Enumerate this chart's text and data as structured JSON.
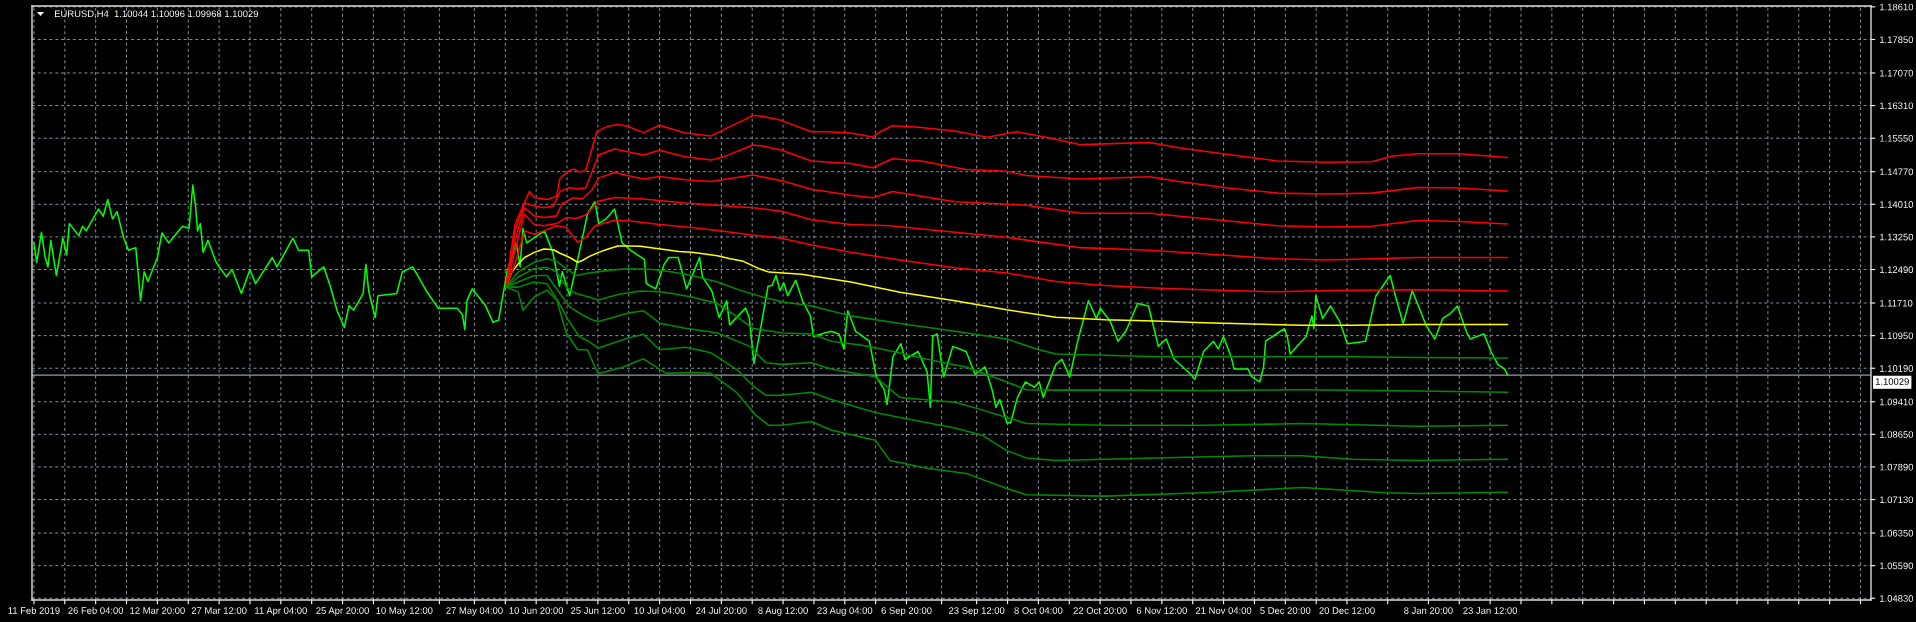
{
  "chart_data": {
    "type": "line",
    "title": "EURUSD,H4  1.10044 1.10096 1.09968 1.10029",
    "xlim": [
      "2019-02-11T01:00",
      "2020-04-23T00:00"
    ],
    "xticks": [
      {
        "value": "2019-02-11T12:00",
        "label": "11 Feb 2019"
      },
      {
        "value": "2019-02-18T20:00",
        "label": null
      },
      {
        "value": "2019-02-26T04:00",
        "label": "26 Feb 04:00"
      },
      {
        "value": "2019-03-05T12:00",
        "label": null
      },
      {
        "value": "2019-03-12T20:00",
        "label": "12 Mar 20:00"
      },
      {
        "value": "2019-03-20T04:00",
        "label": null
      },
      {
        "value": "2019-03-27T12:00",
        "label": "27 Mar 12:00"
      },
      {
        "value": "2019-04-03T20:00",
        "label": null
      },
      {
        "value": "2019-04-11T04:00",
        "label": "11 Apr 04:00"
      },
      {
        "value": "2019-04-18T12:00",
        "label": null
      },
      {
        "value": "2019-04-25T20:00",
        "label": "25 Apr 20:00"
      },
      {
        "value": "2019-05-03T04:00",
        "label": null
      },
      {
        "value": "2019-05-10T12:00",
        "label": "10 May 12:00"
      },
      {
        "value": "2019-05-18T20:00",
        "label": null
      },
      {
        "value": "2019-05-27T04:00",
        "label": "27 May 04:00"
      },
      {
        "value": "2019-06-03T12:00",
        "label": null
      },
      {
        "value": "2019-06-10T20:00",
        "label": "10 Jun 20:00"
      },
      {
        "value": "2019-06-18T04:00",
        "label": null
      },
      {
        "value": "2019-06-25T12:00",
        "label": "25 Jun 12:00"
      },
      {
        "value": "2019-07-02T20:00",
        "label": null
      },
      {
        "value": "2019-07-10T04:00",
        "label": "10 Jul 04:00"
      },
      {
        "value": "2019-07-17T12:00",
        "label": null
      },
      {
        "value": "2019-07-24T20:00",
        "label": "24 Jul 20:00"
      },
      {
        "value": "2019-08-01T04:00",
        "label": null
      },
      {
        "value": "2019-08-08T12:00",
        "label": "8 Aug 12:00"
      },
      {
        "value": "2019-08-15T20:00",
        "label": null
      },
      {
        "value": "2019-08-23T04:00",
        "label": "23 Aug 04:00"
      },
      {
        "value": "2019-08-30T12:00",
        "label": null
      },
      {
        "value": "2019-09-06T20:00",
        "label": "6 Sep 20:00"
      },
      {
        "value": "2019-09-15T04:00",
        "label": null
      },
      {
        "value": "2019-09-23T12:00",
        "label": "23 Sep 12:00"
      },
      {
        "value": "2019-09-30T20:00",
        "label": null
      },
      {
        "value": "2019-10-08T04:00",
        "label": "8 Oct 04:00"
      },
      {
        "value": "2019-10-15T12:00",
        "label": null
      },
      {
        "value": "2019-10-22T20:00",
        "label": "22 Oct 20:00"
      },
      {
        "value": "2019-10-30T04:00",
        "label": null
      },
      {
        "value": "2019-11-06T12:00",
        "label": "6 Nov 12:00"
      },
      {
        "value": "2019-11-13T20:00",
        "label": null
      },
      {
        "value": "2019-11-21T04:00",
        "label": "21 Nov 04:00"
      },
      {
        "value": "2019-11-28T12:00",
        "label": null
      },
      {
        "value": "2019-12-05T20:00",
        "label": "5 Dec 20:00"
      },
      {
        "value": "2019-12-13T04:00",
        "label": null
      },
      {
        "value": "2019-12-20T12:00",
        "label": "20 Dec 12:00"
      },
      {
        "value": "2019-12-30T04:00",
        "label": null
      },
      {
        "value": "2020-01-08T20:00",
        "label": "8 Jan 20:00"
      },
      {
        "value": "2020-01-16T04:00",
        "label": null
      },
      {
        "value": "2020-01-23T12:00",
        "label": "23 Jan 12:00"
      },
      {
        "value": "2020-01-30T20:00",
        "label": null
      },
      {
        "value": "2020-02-07T04:00",
        "label": null
      },
      {
        "value": "2020-02-14T12:00",
        "label": null
      },
      {
        "value": "2020-02-21T20:00",
        "label": null
      },
      {
        "value": "2020-02-29T04:00",
        "label": null
      },
      {
        "value": "2020-03-07T12:00",
        "label": null
      },
      {
        "value": "2020-03-14T20:00",
        "label": null
      },
      {
        "value": "2020-03-22T04:00",
        "label": null
      },
      {
        "value": "2020-03-29T12:00",
        "label": null
      },
      {
        "value": "2020-04-05T20:00",
        "label": null
      },
      {
        "value": "2020-04-13T04:00",
        "label": null
      },
      {
        "value": "2020-04-20T12:00",
        "label": null
      }
    ],
    "ylim": [
      1.0479,
      1.1863
    ],
    "yticks": [
      {
        "value": 1.0483,
        "label": "1.04830"
      },
      {
        "value": 1.0559,
        "label": "1.05590"
      },
      {
        "value": 1.0635,
        "label": "1.06350"
      },
      {
        "value": 1.0713,
        "label": "1.07130"
      },
      {
        "value": 1.0789,
        "label": "1.07890"
      },
      {
        "value": 1.0865,
        "label": "1.08650"
      },
      {
        "value": 1.0941,
        "label": "1.09410"
      },
      {
        "value": 1.1019,
        "label": "1.10190"
      },
      {
        "value": 1.1095,
        "label": "1.10950"
      },
      {
        "value": 1.1171,
        "label": "1.11710"
      },
      {
        "value": 1.1249,
        "label": "1.12490"
      },
      {
        "value": 1.1325,
        "label": "1.13250"
      },
      {
        "value": 1.1401,
        "label": "1.14010"
      },
      {
        "value": 1.1477,
        "label": "1.14770"
      },
      {
        "value": 1.1555,
        "label": "1.15550"
      },
      {
        "value": 1.1631,
        "label": "1.16310"
      },
      {
        "value": 1.1707,
        "label": "1.17070"
      },
      {
        "value": 1.1785,
        "label": "1.17850"
      },
      {
        "value": 1.1861,
        "label": "1.18610"
      }
    ],
    "grid": true,
    "ref_lines": [
      {
        "axis": "y",
        "value": 1.10029,
        "label": "1.10029",
        "color": "#8e9cab"
      }
    ],
    "series": [
      {
        "color": "#00ff00",
        "x": [
          "2019-02-11T12:00",
          "2019-02-12T04:00",
          "2019-02-13T07:00",
          "2019-02-14T04:00",
          "2019-02-14T20:00",
          "2019-02-15T12:00",
          "2019-02-16T20:00",
          "2019-02-18T09:00",
          "2019-02-19T07:00",
          "2019-02-19T22:00",
          "2019-02-22T04:00",
          "2019-02-23T01:00",
          "2019-02-23T22:00",
          "2019-02-26T20:00",
          "2019-02-27T23:00",
          "2019-03-01T01:00",
          "2019-03-02T04:00",
          "2019-03-03T06:00",
          "2019-03-04T20:00",
          "2019-03-05T23:00",
          "2019-03-07T17:00",
          "2019-03-08T20:00",
          "2019-03-09T17:00",
          "2019-03-10T14:00",
          "2019-03-12T20:00",
          "2019-03-13T22:00",
          "2019-03-15T12:00",
          "2019-03-18T20:00",
          "2019-03-20T09:00",
          "2019-03-21T06:00",
          "2019-03-21T22:00",
          "2019-03-22T09:00",
          "2019-03-23T01:00",
          "2019-03-23T17:00",
          "2019-03-24T20:00",
          "2019-03-26T19:00",
          "2019-03-29T06:00",
          "2019-03-30T14:00",
          "2019-04-01T19:00",
          "2019-04-03T20:00",
          "2019-04-05T04:00",
          "2019-04-09T03:00",
          "2019-04-10T06:00",
          "2019-04-14T01:00",
          "2019-04-15T09:00",
          "2019-04-17T19:00",
          "2019-04-18T12:00",
          "2019-04-21T09:00",
          "2019-04-22T22:00",
          "2019-04-24T12:00",
          "2019-04-26T06:00",
          "2019-04-27T09:00",
          "2019-04-28T11:00",
          "2019-04-30T17:00",
          "2019-05-01T09:00",
          "2019-05-02T01:00",
          "2019-05-03T14:00",
          "2019-05-04T06:00",
          "2019-05-08T17:00",
          "2019-05-10T01:00",
          "2019-05-12T12:00",
          "2019-05-15T18:00",
          "2019-05-18T13:00",
          "2019-05-23T02:00",
          "2019-05-24T08:00",
          "2019-05-24T21:00",
          "2019-05-25T09:00",
          "2019-05-26T15:00",
          "2019-05-29T19:00",
          "2019-05-31T14:00",
          "2019-06-01T22:00",
          "2019-06-03T22:00",
          "2019-06-06T03:00",
          "2019-06-07T00:00",
          "2019-06-07T17:00",
          "2019-06-08T14:00",
          "2019-06-12T19:00",
          "2019-06-14T19:00",
          "2019-06-16T09:00",
          "2019-06-17T01:00",
          "2019-06-18T19:00",
          "2019-06-20T08:00",
          "2019-06-23T01:00",
          "2019-06-24T19:00",
          "2019-06-25T17:00",
          "2019-06-27T11:00",
          "2019-06-29T11:00",
          "2019-07-01T06:00",
          "2019-07-03T06:00",
          "2019-07-06T14:00",
          "2019-07-07T00:00",
          "2019-07-09T06:00",
          "2019-07-11T06:00",
          "2019-07-12T08:00",
          "2019-07-14T14:00",
          "2019-07-16T14:00",
          "2019-07-19T16:00",
          "2019-07-20T08:00",
          "2019-07-22T14:00",
          "2019-07-24T08:00",
          "2019-07-26T03:00",
          "2019-07-26T19:00",
          "2019-07-30T14:00",
          "2019-07-31T11:00",
          "2019-08-01T14:00",
          "2019-08-03T03:00",
          "2019-08-04T22:00",
          "2019-08-05T21:00",
          "2019-08-06T20:00",
          "2019-08-07T18:00",
          "2019-08-08T16:00",
          "2019-08-09T15:00",
          "2019-08-11T12:00",
          "2019-08-13T03:00",
          "2019-08-15T00:00",
          "2019-08-15T17:00",
          "2019-08-17T14:00",
          "2019-08-19T22:00",
          "2019-08-21T19:00",
          "2019-08-22T23:00",
          "2019-08-23T21:00",
          "2019-08-25T18:00",
          "2019-08-29T00:00",
          "2019-08-30T16:00",
          "2019-09-01T13:00",
          "2019-09-02T05:00",
          "2019-09-03T15:00",
          "2019-09-05T12:00",
          "2019-09-06T11:00",
          "2019-09-09T14:00",
          "2019-09-11T17:00",
          "2019-09-12T12:00",
          "2019-09-13T01:00",
          "2019-09-14T02:00",
          "2019-09-15T16:00",
          "2019-09-17T20:00",
          "2019-09-21T00:00",
          "2019-09-23T03:00",
          "2019-09-25T12:00",
          "2019-09-27T04:00",
          "2019-09-28T02:00",
          "2019-09-29T00:00",
          "2019-09-30T16:00",
          "2019-10-01T14:00",
          "2019-10-03T05:00",
          "2019-10-05T02:00",
          "2019-10-07T05:00",
          "2019-10-08T09:00",
          "2019-10-09T07:00",
          "2019-10-12T08:00",
          "2019-10-13T18:00",
          "2019-10-15T15:00",
          "2019-10-17T12:00",
          "2019-10-20T01:00",
          "2019-10-21T23:00",
          "2019-10-22T21:00",
          "2019-10-25T05:00",
          "2019-10-27T02:00",
          "2019-10-28T23:00",
          "2019-10-31T18:00",
          "2019-11-03T08:00",
          "2019-11-05T16:00",
          "2019-11-07T13:00",
          "2019-11-09T10:00",
          "2019-11-13T09:00",
          "2019-11-14T08:00",
          "2019-11-16T10:00",
          "2019-11-18T18:00",
          "2019-11-19T22:00",
          "2019-11-21T03:00",
          "2019-11-22T23:00",
          "2019-11-23T16:00",
          "2019-11-26T23:00",
          "2019-11-27T21:00",
          "2019-11-29T18:00",
          "2019-11-30T16:00",
          "2019-12-01T04:00",
          "2019-12-05T14:00",
          "2019-12-06T07:00",
          "2019-12-07T00:00",
          "2019-12-10T18:00",
          "2019-12-12T04:00",
          "2019-12-12T15:00",
          "2019-12-13T02:00",
          "2019-12-14T17:00",
          "2019-12-16T14:00",
          "2019-12-18T17:00",
          "2019-12-20T14:00",
          "2019-12-24T22:00",
          "2019-12-27T09:00",
          "2019-12-30T18:00",
          "2020-01-01T00:00",
          "2020-01-02T20:00",
          "2020-01-05T00:00",
          "2020-01-08T09:00",
          "2020-01-10T09:00",
          "2020-01-12T06:00",
          "2020-01-14T03:00",
          "2020-01-15T18:00",
          "2020-01-17T20:00",
          "2020-01-18T19:00",
          "2020-01-22T01:00",
          "2020-01-23T17:00",
          "2020-01-25T08:00",
          "2020-01-26T23:00",
          "2020-01-27T16:00"
        ],
        "values": [
          1.1311,
          1.1266,
          1.1336,
          1.1277,
          1.1255,
          1.1317,
          1.1235,
          1.1322,
          1.1283,
          1.1356,
          1.1328,
          1.135,
          1.1339,
          1.139,
          1.1373,
          1.1412,
          1.1367,
          1.1384,
          1.1322,
          1.1294,
          1.13,
          1.1176,
          1.1244,
          1.1221,
          1.1277,
          1.1334,
          1.1311,
          1.135,
          1.1345,
          1.1446,
          1.1395,
          1.1339,
          1.1356,
          1.1289,
          1.1317,
          1.1266,
          1.1232,
          1.1249,
          1.1193,
          1.1249,
          1.1216,
          1.1277,
          1.1255,
          1.1322,
          1.1294,
          1.1294,
          1.1232,
          1.1255,
          1.121,
          1.1154,
          1.1114,
          1.1165,
          1.1154,
          1.1193,
          1.1261,
          1.1199,
          1.1137,
          1.1188,
          1.1193,
          1.1244,
          1.1255,
          1.1199,
          1.1159,
          1.1159,
          1.1143,
          1.1109,
          1.1176,
          1.1204,
          1.1165,
          1.1126,
          1.1131,
          1.1244,
          1.1311,
          1.1255,
          1.1345,
          1.1311,
          1.1339,
          1.1289,
          1.121,
          1.1244,
          1.1188,
          1.1255,
          1.1379,
          1.1407,
          1.1356,
          1.1367,
          1.139,
          1.1311,
          1.1294,
          1.1272,
          1.1216,
          1.1204,
          1.1261,
          1.1277,
          1.1277,
          1.1204,
          1.1277,
          1.1232,
          1.1199,
          1.1137,
          1.1176,
          1.112,
          1.1159,
          1.1137,
          1.103,
          1.1109,
          1.121,
          1.1212,
          1.1235,
          1.12,
          1.1218,
          1.1188,
          1.1224,
          1.1176,
          1.1141,
          1.1093,
          1.1099,
          1.1105,
          1.1099,
          1.1064,
          1.1153,
          1.1105,
          1.1082,
          1.0999,
          1.0969,
          1.0934,
          1.1046,
          1.1076,
          1.104,
          1.1058,
          1.1011,
          1.0928,
          1.1093,
          1.1099,
          1.0999,
          1.107,
          1.1058,
          1.1005,
          1.1022,
          1.0969,
          1.0928,
          1.0946,
          1.0892,
          1.0892,
          1.0951,
          1.0987,
          1.0975,
          1.0987,
          1.0951,
          1.1028,
          1.104,
          1.0999,
          1.1082,
          1.1176,
          1.1135,
          1.1158,
          1.1129,
          1.1082,
          1.1105,
          1.117,
          1.1164,
          1.107,
          1.1087,
          1.104,
          1.1005,
          1.0993,
          1.1058,
          1.1082,
          1.1064,
          1.1093,
          1.1046,
          1.1017,
          1.1017,
          1.0999,
          1.0987,
          1.1022,
          1.1082,
          1.1111,
          1.1093,
          1.1052,
          1.1093,
          1.1141,
          1.1111,
          1.1188,
          1.1135,
          1.1164,
          1.1129,
          1.1076,
          1.1082,
          1.1188,
          1.1235,
          1.1188,
          1.1123,
          1.12,
          1.1117,
          1.1087,
          1.1135,
          1.1147,
          1.1164,
          1.1105,
          1.1087,
          1.1099,
          1.1058,
          1.1028,
          1.1017,
          1.1003
        ]
      },
      {
        "color": "#ffff00",
        "x": [
          "2019-06-03T16:00",
          "2019-06-05T01:00",
          "2019-06-06T13:00",
          "2019-06-08T02:00",
          "2019-06-10T09:00",
          "2019-06-12T16:00",
          "2019-06-14T23:00",
          "2019-06-16T12:00",
          "2019-06-18T19:00",
          "2019-06-20T17:00",
          "2019-06-21T20:00",
          "2019-06-23T09:00",
          "2019-06-25T16:00",
          "2019-06-27T23:00",
          "2019-06-30T06:00",
          "2019-07-02T13:00",
          "2019-07-05T14:00",
          "2019-07-08T15:00",
          "2019-07-11T17:00",
          "2019-07-14T18:00",
          "2019-07-17T19:00",
          "2019-07-20T21:00",
          "2019-07-23T22:00",
          "2019-07-26T23:00",
          "2019-07-30T01:00",
          "2019-08-02T20:00",
          "2019-08-05T03:00",
          "2019-08-12T21:00",
          "2019-08-24T14:00",
          "2019-09-05T07:00",
          "2019-09-18T08:00",
          "2019-09-30T16:00",
          "2019-10-12T08:00",
          "2019-10-24T01:00",
          "2019-11-04T18:00",
          "2019-11-16T10:00",
          "2019-11-28T03:00",
          "2019-12-09T19:00",
          "2019-12-21T20:00",
          "2020-01-06T06:00",
          "2020-01-27T16:00"
        ],
        "values": [
          1.1208,
          1.1243,
          1.1262,
          1.1277,
          1.1289,
          1.1297,
          1.1295,
          1.1287,
          1.1277,
          1.1266,
          1.127,
          1.1279,
          1.1289,
          1.1297,
          1.1304,
          1.1304,
          1.1303,
          1.1299,
          1.1295,
          1.1291,
          1.1289,
          1.1285,
          1.1281,
          1.1274,
          1.1268,
          1.1251,
          1.1243,
          1.1238,
          1.122,
          1.1196,
          1.1176,
          1.1155,
          1.1138,
          1.1132,
          1.1129,
          1.1125,
          1.1122,
          1.1119,
          1.1119,
          1.1121,
          1.1121
        ]
      },
      {
        "color": "#ff0000",
        "x": [
          "2019-06-03T16:00",
          "2019-06-05T19:00",
          "2019-06-08T02:00",
          "2019-06-10T09:00",
          "2019-06-12T16:00",
          "2019-06-15T17:00",
          "2019-06-18T00:00",
          "2019-06-20T17:00",
          "2019-06-22T14:00",
          "2019-06-24T21:00",
          "2019-06-29T11:00",
          "2019-07-03T07:00",
          "2019-07-10T04:00",
          "2019-07-17T19:00",
          "2019-07-23T22:00",
          "2019-07-31T13:00",
          "2019-08-08T05:00",
          "2019-08-15T06:00",
          "2019-08-24T14:00",
          "2019-09-05T07:00",
          "2019-09-18T08:00",
          "2019-09-30T16:00",
          "2019-10-12T08:00",
          "2019-10-24T01:00",
          "2019-11-04T18:00",
          "2019-11-16T10:00",
          "2019-12-03T23:00",
          "2019-12-15T16:00",
          "2020-01-06T06:00",
          "2020-01-27T16:00"
        ],
        "values": [
          1.1208,
          1.1262,
          1.1339,
          1.1331,
          1.1339,
          1.1351,
          1.1347,
          1.1312,
          1.1324,
          1.1351,
          1.1364,
          1.1362,
          1.1354,
          1.1347,
          1.134,
          1.133,
          1.1322,
          1.1306,
          1.1289,
          1.1271,
          1.1253,
          1.1241,
          1.1221,
          1.1212,
          1.1206,
          1.1202,
          1.1197,
          1.12,
          1.1202,
          1.1199
        ]
      },
      {
        "color": "#ff0000",
        "x": [
          "2019-06-03T16:00",
          "2019-06-05T19:00",
          "2019-06-08T02:00",
          "2019-06-10T09:00",
          "2019-06-12T16:00",
          "2019-06-15T17:00",
          "2019-06-18T00:00",
          "2019-06-20T07:00",
          "2019-06-22T14:00",
          "2019-06-25T16:00",
          "2019-06-29T11:00",
          "2019-07-05T14:00",
          "2019-07-16T07:00",
          "2019-07-23T22:00",
          "2019-08-01T08:00",
          "2019-08-08T05:00",
          "2019-08-15T06:00",
          "2019-08-24T14:00",
          "2019-09-02T22:00",
          "2019-09-18T08:00",
          "2019-09-30T16:00",
          "2019-10-18T05:00",
          "2019-11-03T14:00",
          "2019-11-16T10:00",
          "2019-12-03T23:00",
          "2019-12-15T16:00",
          "2020-01-06T06:00",
          "2020-01-27T16:00"
        ],
        "values": [
          1.1208,
          1.1293,
          1.1378,
          1.1354,
          1.1351,
          1.1356,
          1.137,
          1.1368,
          1.1376,
          1.1408,
          1.1417,
          1.1414,
          1.1404,
          1.1399,
          1.1393,
          1.1385,
          1.1365,
          1.1354,
          1.1351,
          1.1336,
          1.1324,
          1.13,
          1.1294,
          1.1286,
          1.1274,
          1.1271,
          1.1277,
          1.1277
        ]
      },
      {
        "color": "#ff0000",
        "x": [
          "2019-06-03T16:00",
          "2019-06-05T19:00",
          "2019-06-08T02:00",
          "2019-06-10T09:00",
          "2019-06-12T16:00",
          "2019-06-15T17:00",
          "2019-06-16T21:00",
          "2019-06-19T13:00",
          "2019-06-21T20:00",
          "2019-06-24T03:00",
          "2019-06-25T16:00",
          "2019-06-29T11:00",
          "2019-07-06T08:00",
          "2019-07-10T04:00",
          "2019-07-16T07:00",
          "2019-07-22T09:00",
          "2019-08-01T08:00",
          "2019-08-08T05:00",
          "2019-08-15T06:00",
          "2019-08-24T14:00",
          "2019-08-29T20:00",
          "2019-09-03T12:00",
          "2019-09-18T08:00",
          "2019-10-05T08:00",
          "2019-10-18T05:00",
          "2019-11-03T14:00",
          "2019-11-16T10:00",
          "2019-12-03T23:00",
          "2019-12-15T16:00",
          "2019-12-26T10:00",
          "2020-01-06T06:00",
          "2020-01-16T05:00",
          "2020-01-27T16:00"
        ],
        "values": [
          1.1208,
          1.1316,
          1.1393,
          1.1374,
          1.137,
          1.1374,
          1.1401,
          1.1416,
          1.1414,
          1.1435,
          1.1462,
          1.1475,
          1.146,
          1.1466,
          1.1458,
          1.1454,
          1.1469,
          1.1456,
          1.1436,
          1.1422,
          1.1416,
          1.1431,
          1.1407,
          1.1399,
          1.138,
          1.138,
          1.1368,
          1.1351,
          1.1348,
          1.135,
          1.1363,
          1.1361,
          1.1355
        ]
      },
      {
        "color": "#ff0000",
        "x": [
          "2019-06-03T16:00",
          "2019-06-05T19:00",
          "2019-06-08T02:00",
          "2019-06-10T09:00",
          "2019-06-12T16:00",
          "2019-06-14T23:00",
          "2019-06-16T12:00",
          "2019-06-18T19:00",
          "2019-06-20T07:00",
          "2019-06-22T14:00",
          "2019-06-24T03:00",
          "2019-06-25T16:00",
          "2019-06-29T11:00",
          "2019-07-06T08:00",
          "2019-07-10T04:00",
          "2019-07-16T07:00",
          "2019-07-22T09:00",
          "2019-07-25T11:00",
          "2019-08-01T08:00",
          "2019-08-03T15:00",
          "2019-08-08T05:00",
          "2019-08-15T06:00",
          "2019-08-24T14:00",
          "2019-08-29T20:00",
          "2019-09-03T12:00",
          "2019-09-10T09:00",
          "2019-09-21T00:00",
          "2019-09-30T16:00",
          "2019-10-05T08:00",
          "2019-10-18T05:00",
          "2019-11-03T14:00",
          "2019-11-10T14:00",
          "2019-11-22T06:00",
          "2019-12-03T23:00",
          "2019-12-15T16:00",
          "2019-12-26T10:00",
          "2020-01-06T06:00",
          "2020-01-16T05:00",
          "2020-01-27T16:00"
        ],
        "values": [
          1.1208,
          1.1339,
          1.1404,
          1.1397,
          1.1393,
          1.1397,
          1.1431,
          1.144,
          1.1437,
          1.1439,
          1.1477,
          1.1516,
          1.153,
          1.1516,
          1.1527,
          1.1512,
          1.1504,
          1.1512,
          1.1539,
          1.1537,
          1.1527,
          1.1502,
          1.1496,
          1.1486,
          1.1507,
          1.1502,
          1.1482,
          1.1478,
          1.1468,
          1.146,
          1.1465,
          1.1454,
          1.1439,
          1.1427,
          1.1425,
          1.1427,
          1.144,
          1.1439,
          1.1432
        ]
      },
      {
        "color": "#ff0000",
        "x": [
          "2019-06-03T16:00",
          "2019-06-05T19:00",
          "2019-06-09T06:00",
          "2019-06-10T09:00",
          "2019-06-13T10:00",
          "2019-06-15T17:00",
          "2019-06-16T12:00",
          "2019-06-18T19:00",
          "2019-06-19T22:00",
          "2019-06-21T02:00",
          "2019-06-22T14:00",
          "2019-06-24T03:00",
          "2019-06-25T06:00",
          "2019-06-27T23:00",
          "2019-06-30T06:00",
          "2019-07-02T13:00",
          "2019-07-06T08:00",
          "2019-07-10T04:00",
          "2019-07-13T05:00",
          "2019-07-16T07:00",
          "2019-07-22T09:00",
          "2019-07-23T22:00",
          "2019-07-29T06:00",
          "2019-08-01T08:00",
          "2019-08-03T15:00",
          "2019-08-08T05:00",
          "2019-08-15T06:00",
          "2019-08-18T18:00",
          "2019-08-24T14:00",
          "2019-08-29T20:00",
          "2019-08-31T14:00",
          "2019-09-03T12:00",
          "2019-09-09T01:00",
          "2019-09-18T08:00",
          "2019-09-26T00:00",
          "2019-10-03T00:00",
          "2019-10-10T00:00",
          "2019-10-18T05:00",
          "2019-11-03T14:00",
          "2019-11-10T14:00",
          "2019-11-22T06:00",
          "2019-12-03T23:00",
          "2019-12-15T16:00",
          "2019-12-26T10:00",
          "2019-12-31T02:00",
          "2020-01-06T06:00",
          "2020-01-16T05:00",
          "2020-01-27T16:00"
        ],
        "values": [
          1.1208,
          1.1354,
          1.1431,
          1.1417,
          1.1412,
          1.142,
          1.1462,
          1.148,
          1.1483,
          1.1476,
          1.1479,
          1.1531,
          1.1571,
          1.1583,
          1.1587,
          1.1583,
          1.1568,
          1.1585,
          1.1576,
          1.1567,
          1.156,
          1.1568,
          1.1593,
          1.1608,
          1.1606,
          1.1596,
          1.157,
          1.157,
          1.1567,
          1.1558,
          1.157,
          1.1584,
          1.1581,
          1.1572,
          1.1557,
          1.157,
          1.1557,
          1.154,
          1.1545,
          1.1533,
          1.1517,
          1.1502,
          1.1499,
          1.15,
          1.1513,
          1.1519,
          1.1519,
          1.151
        ]
      },
      {
        "color": "#008c00",
        "x": [
          "2019-06-03T16:00",
          "2019-06-06T13:00",
          "2019-06-10T09:00",
          "2019-06-13T10:00",
          "2019-06-15T17:00",
          "2019-06-18T00:00",
          "2019-06-20T07:00",
          "2019-06-23T09:00",
          "2019-06-27T23:00",
          "2019-07-02T13:00",
          "2019-07-08T15:00",
          "2019-07-13T05:00",
          "2019-07-17T19:00",
          "2019-07-23T22:00",
          "2019-07-29T06:00",
          "2019-08-03T15:00",
          "2019-08-08T05:00",
          "2019-08-15T06:00",
          "2019-08-24T14:00",
          "2019-09-05T07:00",
          "2019-09-18T08:00",
          "2019-09-30T16:00",
          "2019-10-07T16:00",
          "2019-10-12T08:00",
          "2019-10-24T01:00",
          "2019-11-04T18:00",
          "2019-11-28T03:00",
          "2019-12-21T20:00",
          "2020-01-06T06:00",
          "2020-01-27T16:00"
        ],
        "values": [
          1.1208,
          1.1243,
          1.1266,
          1.1274,
          1.1268,
          1.1251,
          1.1235,
          1.1241,
          1.1247,
          1.1251,
          1.1249,
          1.1243,
          1.1235,
          1.122,
          1.1201,
          1.1185,
          1.1174,
          1.1164,
          1.1141,
          1.1123,
          1.1105,
          1.1087,
          1.1064,
          1.1052,
          1.1049,
          1.1046,
          1.1046,
          1.1046,
          1.1044,
          1.1043
        ]
      },
      {
        "color": "#008c00",
        "x": [
          "2019-06-03T16:00",
          "2019-06-06T13:00",
          "2019-06-10T09:00",
          "2019-06-13T10:00",
          "2019-06-15T17:00",
          "2019-06-18T00:00",
          "2019-06-20T07:00",
          "2019-06-23T09:00",
          "2019-06-25T16:00",
          "2019-06-30T06:00",
          "2019-07-05T14:00",
          "2019-07-10T04:00",
          "2019-07-13T05:00",
          "2019-07-17T19:00",
          "2019-07-23T22:00",
          "2019-07-28T12:00",
          "2019-08-01T08:00",
          "2019-08-08T05:00",
          "2019-08-15T06:00",
          "2019-08-19T22:00",
          "2019-08-26T22:00",
          "2019-09-02T22:00",
          "2019-09-11T17:00",
          "2019-09-21T00:00",
          "2019-09-30T16:00",
          "2019-10-05T08:00",
          "2019-10-12T08:00",
          "2019-10-24T01:00",
          "2019-11-16T10:00",
          "2019-12-09T19:00",
          "2020-01-06T06:00",
          "2020-01-27T16:00"
        ],
        "values": [
          1.1208,
          1.1231,
          1.1251,
          1.1254,
          1.1243,
          1.1208,
          1.1193,
          1.1185,
          1.1178,
          1.1191,
          1.1199,
          1.1197,
          1.1193,
          1.1185,
          1.117,
          1.1139,
          1.1112,
          1.1101,
          1.1099,
          1.1082,
          1.1073,
          1.106,
          1.104,
          1.1022,
          1.0987,
          1.0969,
          1.0968,
          1.0968,
          1.0967,
          1.0969,
          1.0966,
          1.0963
        ]
      },
      {
        "color": "#008c00",
        "x": [
          "2019-06-03T16:00",
          "2019-06-06T13:00",
          "2019-06-10T09:00",
          "2019-06-13T10:00",
          "2019-06-16T12:00",
          "2019-06-18T19:00",
          "2019-06-21T20:00",
          "2019-06-24T03:00",
          "2019-06-25T16:00",
          "2019-07-02T13:00",
          "2019-07-06T08:00",
          "2019-07-10T04:00",
          "2019-07-16T07:00",
          "2019-07-23T22:00",
          "2019-07-31T13:00",
          "2019-08-04T09:00",
          "2019-08-08T05:00",
          "2019-08-15T06:00",
          "2019-08-19T22:00",
          "2019-08-30T10:00",
          "2019-09-05T07:00",
          "2019-09-18T08:00",
          "2019-09-24T19:00",
          "2019-09-30T16:00",
          "2019-10-05T08:00",
          "2019-10-24T01:00",
          "2019-11-16T10:00",
          "2019-12-09T19:00",
          "2020-01-06T06:00",
          "2020-01-27T16:00"
        ],
        "values": [
          1.1208,
          1.122,
          1.1235,
          1.1235,
          1.1193,
          1.1162,
          1.1143,
          1.1132,
          1.1128,
          1.1147,
          1.1153,
          1.1124,
          1.1112,
          1.1101,
          1.107,
          1.1032,
          1.1028,
          1.1032,
          1.1017,
          1.0999,
          1.0951,
          1.094,
          1.0922,
          1.0904,
          1.089,
          1.0886,
          1.0886,
          1.089,
          1.0884,
          1.0886
        ]
      },
      {
        "color": "#008c00",
        "x": [
          "2019-06-03T16:00",
          "2019-06-06T13:00",
          "2019-06-10T09:00",
          "2019-06-13T10:00",
          "2019-06-16T02:00",
          "2019-06-18T10:00",
          "2019-06-21T02:00",
          "2019-06-23T09:00",
          "2019-06-25T16:00",
          "2019-07-02T13:00",
          "2019-07-06T08:00",
          "2019-07-10T04:00",
          "2019-07-16T07:00",
          "2019-07-22T09:00",
          "2019-07-28T12:00",
          "2019-08-01T08:00",
          "2019-08-04T09:00",
          "2019-08-08T05:00",
          "2019-08-15T06:00",
          "2019-08-19T22:00",
          "2019-08-30T10:00",
          "2019-09-05T07:00",
          "2019-09-18T08:00",
          "2019-09-24T19:00",
          "2019-09-30T16:00",
          "2019-10-05T08:00",
          "2019-10-12T08:00",
          "2019-11-04T18:00",
          "2019-11-28T03:00",
          "2019-12-09T19:00",
          "2019-12-21T20:00",
          "2020-01-06T06:00",
          "2020-01-27T16:00"
        ],
        "values": [
          1.1208,
          1.1208,
          1.122,
          1.1216,
          1.1174,
          1.1132,
          1.1093,
          1.1081,
          1.1066,
          1.1089,
          1.1098,
          1.1062,
          1.1068,
          1.1055,
          1.1016,
          1.0978,
          1.0956,
          1.0956,
          1.0963,
          1.0946,
          1.0916,
          1.0904,
          1.088,
          1.0863,
          1.0827,
          1.081,
          1.0804,
          1.081,
          1.0815,
          1.0815,
          1.0807,
          1.0804,
          1.0807
        ]
      },
      {
        "color": "#008c00",
        "x": [
          "2019-06-03T16:00",
          "2019-06-06T13:00",
          "2019-06-07T17:00",
          "2019-06-10T09:00",
          "2019-06-13T10:00",
          "2019-06-15T17:00",
          "2019-06-18T00:00",
          "2019-06-20T17:00",
          "2019-06-23T00:00",
          "2019-06-24T21:00",
          "2019-06-25T16:00",
          "2019-07-01T00:00",
          "2019-07-06T08:00",
          "2019-07-11T17:00",
          "2019-07-17T19:00",
          "2019-07-22T09:00",
          "2019-07-28T12:00",
          "2019-08-02T02:00",
          "2019-08-05T03:00",
          "2019-08-08T05:00",
          "2019-08-15T06:00",
          "2019-08-19T22:00",
          "2019-08-30T10:00",
          "2019-09-02T22:00",
          "2019-09-11T17:00",
          "2019-09-21T00:00",
          "2019-09-30T16:00",
          "2019-10-05T08:00",
          "2019-10-24T01:00",
          "2019-11-16T10:00",
          "2019-12-09T19:00",
          "2019-12-29T13:00",
          "2020-01-06T06:00",
          "2020-01-27T16:00"
        ],
        "values": [
          1.1208,
          1.1197,
          1.1154,
          1.1185,
          1.1201,
          1.1178,
          1.1101,
          1.1062,
          1.1062,
          1.102,
          1.1007,
          1.102,
          1.1041,
          1.1007,
          1.1009,
          1.1007,
          1.0962,
          1.0909,
          1.0886,
          1.0886,
          1.0895,
          1.0875,
          1.0851,
          1.0804,
          1.0786,
          1.0774,
          1.0739,
          1.0724,
          1.0721,
          1.0729,
          1.0741,
          1.0729,
          1.0727,
          1.073
        ]
      }
    ]
  }
}
